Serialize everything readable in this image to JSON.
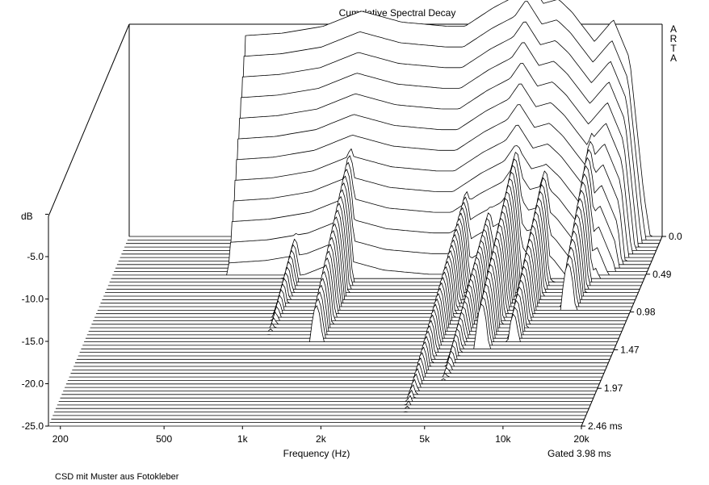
{
  "chart_data": {
    "type": "waterfall",
    "title": "Cumulative Spectral Decay",
    "watermark": "ARTA",
    "xlabel": "Frequency (Hz)",
    "ylabel": "dB",
    "x_scale": "log",
    "xlim": [
      180,
      20000
    ],
    "x_ticks": [
      {
        "value": 200,
        "label": "200"
      },
      {
        "value": 500,
        "label": "500"
      },
      {
        "value": 1000,
        "label": "1k"
      },
      {
        "value": 2000,
        "label": "2k"
      },
      {
        "value": 5000,
        "label": "5k"
      },
      {
        "value": 10000,
        "label": "10k"
      },
      {
        "value": 20000,
        "label": "20k"
      }
    ],
    "ylim": [
      -25,
      0
    ],
    "y_ticks": [
      {
        "value": -5,
        "label": "-5.0"
      },
      {
        "value": -10,
        "label": "-10.0"
      },
      {
        "value": -15,
        "label": "-15.0"
      },
      {
        "value": -20,
        "label": "-20.0"
      },
      {
        "value": -25,
        "label": "-25.0"
      }
    ],
    "time_axis": {
      "unit": "ms",
      "range": [
        0,
        2.46
      ],
      "slices": 55,
      "ticks": [
        {
          "value": 0.0,
          "label": "0.0"
        },
        {
          "value": 0.49,
          "label": "0.49"
        },
        {
          "value": 0.98,
          "label": "0.98"
        },
        {
          "value": 1.47,
          "label": "1.47"
        },
        {
          "value": 1.97,
          "label": "1.97"
        },
        {
          "value": 2.46,
          "label": "2.46 ms"
        }
      ]
    },
    "gated_label": "Gated 3.98 ms",
    "initial_response_db": [
      {
        "f": 480,
        "db": -25
      },
      {
        "f": 500,
        "db": -1.3
      },
      {
        "f": 700,
        "db": -1.0
      },
      {
        "f": 1000,
        "db": -0.2
      },
      {
        "f": 1400,
        "db": 1.6
      },
      {
        "f": 2000,
        "db": 0.3
      },
      {
        "f": 3000,
        "db": -0.2
      },
      {
        "f": 3500,
        "db": -0.2
      },
      {
        "f": 4500,
        "db": 2.0
      },
      {
        "f": 5500,
        "db": 3.4
      },
      {
        "f": 6100,
        "db": 5.4
      },
      {
        "f": 7000,
        "db": 2.5
      },
      {
        "f": 8000,
        "db": 3.0
      },
      {
        "f": 9000,
        "db": 1.5
      },
      {
        "f": 11000,
        "db": -2.0
      },
      {
        "f": 13000,
        "db": 0.6
      },
      {
        "f": 15000,
        "db": -4.0
      },
      {
        "f": 17000,
        "db": -20.0
      },
      {
        "f": 18000,
        "db": -25.0
      }
    ],
    "resonances": [
      {
        "f": 900,
        "db_at_onset": -18.0,
        "decay_ms": 2.2
      },
      {
        "f": 1400,
        "db_at_onset": -9.0,
        "decay_ms": 1.4
      },
      {
        "f": 4000,
        "db_at_onset": -14.0,
        "decay_ms": 2.5
      },
      {
        "f": 5000,
        "db_at_onset": -15.0,
        "decay_ms": 2.3
      },
      {
        "f": 6200,
        "db_at_onset": -8.0,
        "decay_ms": 1.5
      },
      {
        "f": 8000,
        "db_at_onset": -10.0,
        "decay_ms": 1.4
      },
      {
        "f": 11500,
        "db_at_onset": -8.0,
        "decay_ms": 1.0
      }
    ]
  },
  "footer": "CSD mit Muster aus Fotokleber"
}
